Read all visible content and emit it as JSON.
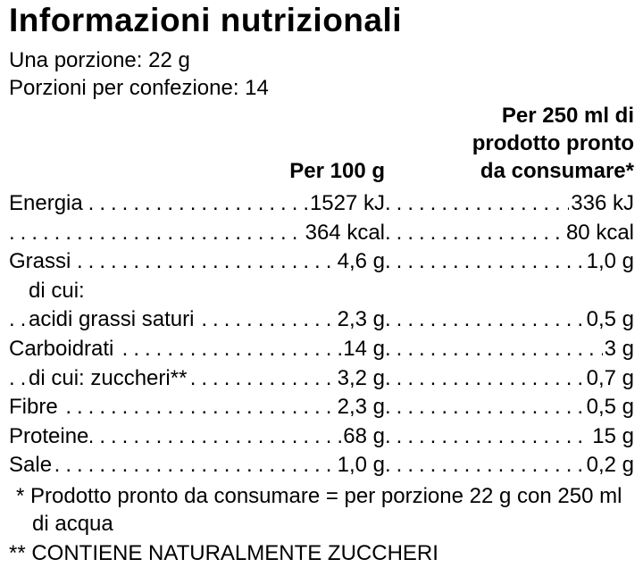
{
  "title": "Informazioni nutrizionali",
  "serving": "Una porzione: 22 g",
  "servings_per_pack": "Porzioni per confezione: 14",
  "columns": {
    "per100": "Per 100 g",
    "per250_line1": "Per 250 ml di",
    "per250_line2": "prodotto pronto",
    "per250_line3": "da consumare*"
  },
  "rows": [
    {
      "label": "Energia",
      "v1": "1527 kJ",
      "v2": "336 kJ",
      "indent": false
    },
    {
      "label": "",
      "v1": "364 kcal",
      "v2": "80 kcal",
      "indent": false
    },
    {
      "label": "Grassi",
      "v1": "4,6 g",
      "v2": "1,0 g",
      "indent": false
    },
    {
      "label": "di cui:",
      "v1": "",
      "v2": "",
      "indent": true
    },
    {
      "label": "acidi grassi saturi",
      "v1": "2,3 g",
      "v2": "0,5 g",
      "indent": true
    },
    {
      "label": "Carboidrati",
      "v1": "14 g",
      "v2": "3 g",
      "indent": false
    },
    {
      "label": "di cui: zuccheri**",
      "v1": "3,2 g",
      "v2": "0,7 g",
      "indent": true
    },
    {
      "label": "Fibre",
      "v1": "2,3 g",
      "v2": "0,5 g",
      "indent": false
    },
    {
      "label": "Proteine",
      "v1": "68 g",
      "v2": "15 g",
      "indent": false
    },
    {
      "label": "Sale",
      "v1": "1,0 g",
      "v2": "0,2 g",
      "indent": false
    }
  ],
  "footnotes": {
    "note1_line1": "* Prodotto pronto da consumare = per porzione 22 g con 250 ml",
    "note1_line2": "di acqua",
    "note2": "** CONTIENE NATURALMENTE ZUCCHERI"
  }
}
